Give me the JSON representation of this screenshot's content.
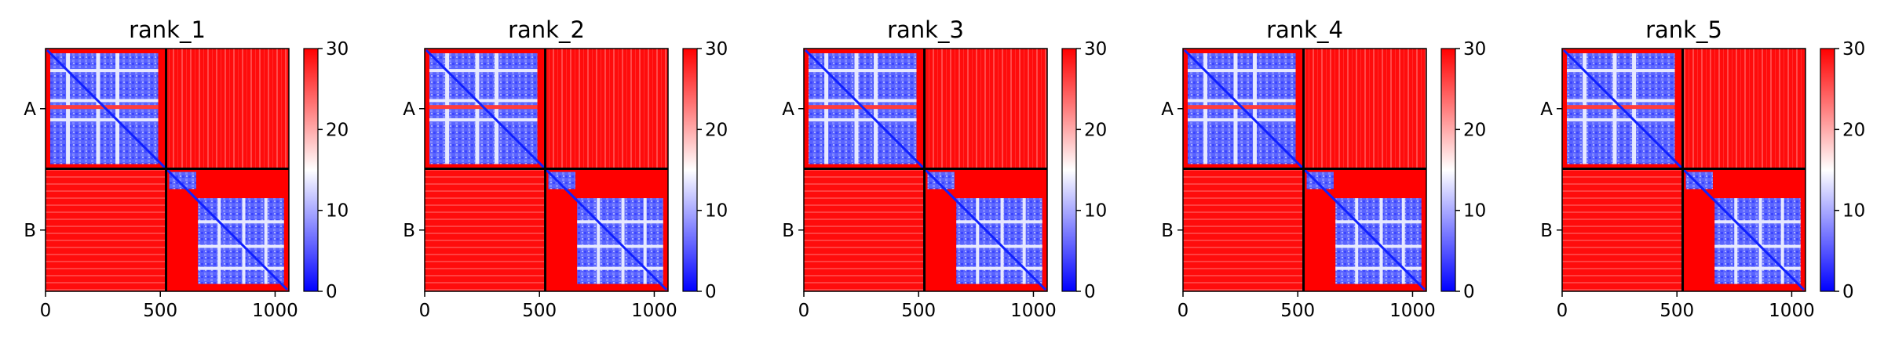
{
  "chart_data": [
    {
      "type": "heatmap",
      "title": "rank_1",
      "x_ticks": [
        0,
        500,
        1000
      ],
      "x_tick_labels": [
        "0",
        "500",
        "1000"
      ],
      "xlim": [
        0,
        1060
      ],
      "chain_labels": [
        "A",
        "B"
      ],
      "chain_boundary": 525,
      "colorbar": {
        "min": 0,
        "max": 30,
        "ticks": [
          "0",
          "10",
          "20",
          "30"
        ],
        "colormap": "bwr"
      }
    },
    {
      "type": "heatmap",
      "title": "rank_2",
      "x_ticks": [
        0,
        500,
        1000
      ],
      "x_tick_labels": [
        "0",
        "500",
        "1000"
      ],
      "xlim": [
        0,
        1060
      ],
      "chain_labels": [
        "A",
        "B"
      ],
      "chain_boundary": 525,
      "colorbar": {
        "min": 0,
        "max": 30,
        "ticks": [
          "0",
          "10",
          "20",
          "30"
        ],
        "colormap": "bwr"
      }
    },
    {
      "type": "heatmap",
      "title": "rank_3",
      "x_ticks": [
        0,
        500,
        1000
      ],
      "x_tick_labels": [
        "0",
        "500",
        "1000"
      ],
      "xlim": [
        0,
        1060
      ],
      "chain_labels": [
        "A",
        "B"
      ],
      "chain_boundary": 525,
      "colorbar": {
        "min": 0,
        "max": 30,
        "ticks": [
          "0",
          "10",
          "20",
          "30"
        ],
        "colormap": "bwr"
      }
    },
    {
      "type": "heatmap",
      "title": "rank_4",
      "x_ticks": [
        0,
        500,
        1000
      ],
      "x_tick_labels": [
        "0",
        "500",
        "1000"
      ],
      "xlim": [
        0,
        1060
      ],
      "chain_labels": [
        "A",
        "B"
      ],
      "chain_boundary": 525,
      "colorbar": {
        "min": 0,
        "max": 30,
        "ticks": [
          "0",
          "10",
          "20",
          "30"
        ],
        "colormap": "bwr"
      }
    },
    {
      "type": "heatmap",
      "title": "rank_5",
      "x_ticks": [
        0,
        500,
        1000
      ],
      "x_tick_labels": [
        "0",
        "500",
        "1000"
      ],
      "xlim": [
        0,
        1060
      ],
      "chain_labels": [
        "A",
        "B"
      ],
      "chain_boundary": 525,
      "colorbar": {
        "min": 0,
        "max": 30,
        "ticks": [
          "0",
          "10",
          "20",
          "30"
        ],
        "colormap": "bwr"
      }
    }
  ],
  "colors": {
    "low": "#0000ff",
    "mid": "#ffffff",
    "high": "#ff0000",
    "boundary": "#000000"
  }
}
